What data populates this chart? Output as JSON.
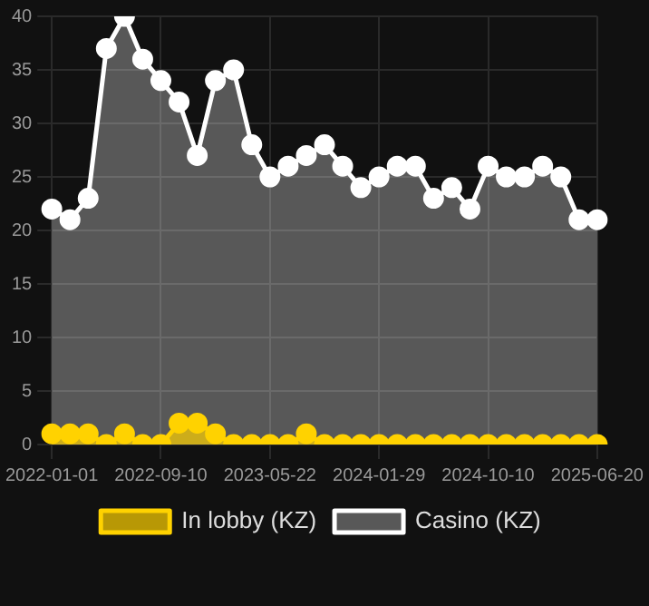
{
  "chart_data": {
    "type": "area",
    "categories": [
      "2022-01-01",
      null,
      null,
      null,
      null,
      null,
      "2022-09-10",
      null,
      null,
      null,
      null,
      null,
      "2023-05-22",
      null,
      null,
      null,
      null,
      null,
      "2024-01-29",
      null,
      null,
      null,
      null,
      null,
      "2024-10-10",
      null,
      null,
      null,
      null,
      null,
      "2025-06-20"
    ],
    "series": [
      {
        "name": "In lobby (KZ)",
        "color": "#ffd200",
        "values": [
          1,
          1,
          1,
          0,
          1,
          0,
          0,
          2,
          2,
          1,
          0,
          0,
          0,
          0,
          1,
          0,
          0,
          0,
          0,
          0,
          0,
          0,
          0,
          0,
          0,
          0,
          0,
          0,
          0,
          0,
          0
        ]
      },
      {
        "name": "Casino (KZ)",
        "color": "#ffffff",
        "values": [
          22,
          21,
          23,
          37,
          40,
          36,
          34,
          32,
          27,
          34,
          35,
          28,
          25,
          26,
          27,
          28,
          26,
          24,
          25,
          26,
          26,
          23,
          24,
          22,
          26,
          25,
          25,
          26,
          25,
          21,
          21
        ]
      }
    ],
    "ylim": [
      0,
      40
    ],
    "yticks": [
      0,
      5,
      10,
      15,
      20,
      25,
      30,
      35,
      40
    ],
    "grid": true,
    "legend": "bottom",
    "marker": "circle"
  }
}
